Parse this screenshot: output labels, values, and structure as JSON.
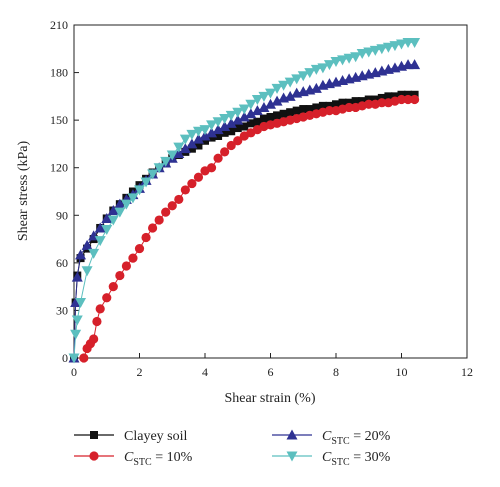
{
  "chart_data": {
    "type": "scatter",
    "xlabel": "Shear strain (%)",
    "ylabel": "Shear stress (kPa)",
    "xlim": [
      0,
      12
    ],
    "ylim": [
      0,
      210
    ],
    "xticks": [
      0,
      2,
      4,
      6,
      8,
      10,
      12
    ],
    "yticks": [
      0,
      30,
      60,
      90,
      120,
      150,
      180,
      210
    ],
    "legend_position": "bottom, two columns",
    "series": [
      {
        "name": "Clayey soil",
        "legend": {
          "main": "Clayey soil",
          "sub": "",
          "tail": ""
        },
        "color": "#111111",
        "marker": "square",
        "x": [
          0.0,
          0.05,
          0.1,
          0.2,
          0.4,
          0.6,
          0.8,
          1.0,
          1.2,
          1.4,
          1.6,
          1.8,
          2.0,
          2.2,
          2.4,
          2.6,
          2.8,
          3.0,
          3.2,
          3.4,
          3.6,
          3.8,
          4.0,
          4.2,
          4.4,
          4.6,
          4.8,
          5.0,
          5.2,
          5.4,
          5.6,
          5.8,
          6.0,
          6.2,
          6.4,
          6.6,
          6.8,
          7.0,
          7.2,
          7.4,
          7.6,
          7.8,
          8.0,
          8.2,
          8.4,
          8.6,
          8.8,
          9.0,
          9.2,
          9.4,
          9.6,
          9.8,
          10.0,
          10.2,
          10.4
        ],
        "y": [
          0,
          35,
          52,
          63,
          69,
          75,
          82,
          88,
          93,
          97,
          101,
          105,
          109,
          113,
          117,
          120,
          123,
          126,
          128,
          130,
          132,
          134,
          137,
          139,
          140,
          142,
          143,
          145,
          146,
          148,
          149,
          151,
          152,
          153,
          154,
          155,
          156,
          157,
          157,
          158,
          159,
          159,
          160,
          161,
          161,
          162,
          162,
          163,
          163,
          164,
          165,
          165,
          166,
          166,
          166
        ]
      },
      {
        "name": "CSTC = 10%",
        "legend": {
          "main": "C",
          "sub": "STC",
          "tail": " = 10%"
        },
        "color": "#d6202a",
        "marker": "circle",
        "x": [
          0.3,
          0.4,
          0.5,
          0.6,
          0.7,
          0.8,
          1.0,
          1.2,
          1.4,
          1.6,
          1.8,
          2.0,
          2.2,
          2.4,
          2.6,
          2.8,
          3.0,
          3.2,
          3.4,
          3.6,
          3.8,
          4.0,
          4.2,
          4.4,
          4.6,
          4.8,
          5.0,
          5.2,
          5.4,
          5.6,
          5.8,
          6.0,
          6.2,
          6.4,
          6.6,
          6.8,
          7.0,
          7.2,
          7.4,
          7.6,
          7.8,
          8.0,
          8.2,
          8.4,
          8.6,
          8.8,
          9.0,
          9.2,
          9.4,
          9.6,
          9.8,
          10.0,
          10.2,
          10.4
        ],
        "y": [
          0,
          6,
          9,
          12,
          23,
          31,
          38,
          45,
          52,
          58,
          63,
          69,
          76,
          82,
          87,
          92,
          96,
          100,
          106,
          110,
          114,
          118,
          120,
          126,
          130,
          134,
          137,
          140,
          142,
          144,
          146,
          147,
          148,
          149,
          150,
          151,
          152,
          153,
          154,
          155,
          156,
          156,
          157,
          158,
          158,
          159,
          160,
          160,
          161,
          161,
          162,
          163,
          163,
          163
        ]
      },
      {
        "name": "CSTC = 20%",
        "legend": {
          "main": "C",
          "sub": "STC",
          "tail": " = 20%"
        },
        "color": "#2e3192",
        "marker": "triangle-up",
        "x": [
          0.0,
          0.05,
          0.1,
          0.2,
          0.4,
          0.6,
          0.8,
          1.0,
          1.2,
          1.4,
          1.6,
          1.8,
          2.0,
          2.2,
          2.4,
          2.6,
          2.8,
          3.0,
          3.2,
          3.4,
          3.6,
          3.8,
          4.0,
          4.2,
          4.4,
          4.6,
          4.8,
          5.0,
          5.2,
          5.4,
          5.6,
          5.8,
          6.0,
          6.2,
          6.4,
          6.6,
          6.8,
          7.0,
          7.2,
          7.4,
          7.6,
          7.8,
          8.0,
          8.2,
          8.4,
          8.6,
          8.8,
          9.0,
          9.2,
          9.4,
          9.6,
          9.8,
          10.0,
          10.2,
          10.4
        ],
        "y": [
          0,
          35,
          51,
          65,
          71,
          77,
          82,
          88,
          93,
          97,
          100,
          103,
          107,
          112,
          116,
          120,
          123,
          126,
          129,
          132,
          135,
          138,
          140,
          142,
          144,
          146,
          148,
          150,
          152,
          154,
          156,
          158,
          160,
          162,
          164,
          165,
          167,
          168,
          169,
          170,
          172,
          173,
          174,
          175,
          176,
          177,
          178,
          179,
          180,
          181,
          182,
          183,
          184,
          185,
          185
        ]
      },
      {
        "name": "CSTC = 30%",
        "legend": {
          "main": "C",
          "sub": "STC",
          "tail": " = 30%"
        },
        "color": "#5cbfbf",
        "marker": "triangle-down",
        "x": [
          0.0,
          0.05,
          0.1,
          0.2,
          0.4,
          0.6,
          0.8,
          1.0,
          1.2,
          1.4,
          1.6,
          1.8,
          2.0,
          2.2,
          2.4,
          2.6,
          2.8,
          3.0,
          3.2,
          3.4,
          3.6,
          3.8,
          4.0,
          4.2,
          4.4,
          4.6,
          4.8,
          5.0,
          5.2,
          5.4,
          5.6,
          5.8,
          6.0,
          6.2,
          6.4,
          6.6,
          6.8,
          7.0,
          7.2,
          7.4,
          7.6,
          7.8,
          8.0,
          8.2,
          8.4,
          8.6,
          8.8,
          9.0,
          9.2,
          9.4,
          9.6,
          9.8,
          10.0,
          10.2,
          10.4
        ],
        "y": [
          0,
          15,
          24,
          35,
          55,
          66,
          74,
          81,
          87,
          92,
          97,
          101,
          106,
          111,
          116,
          120,
          124,
          128,
          133,
          138,
          141,
          143,
          144,
          147,
          149,
          151,
          153,
          155,
          157,
          160,
          163,
          165,
          167,
          170,
          172,
          174,
          176,
          178,
          180,
          182,
          183,
          185,
          187,
          188,
          189,
          190,
          192,
          193,
          194,
          195,
          196,
          197,
          198,
          199,
          199
        ]
      }
    ]
  }
}
